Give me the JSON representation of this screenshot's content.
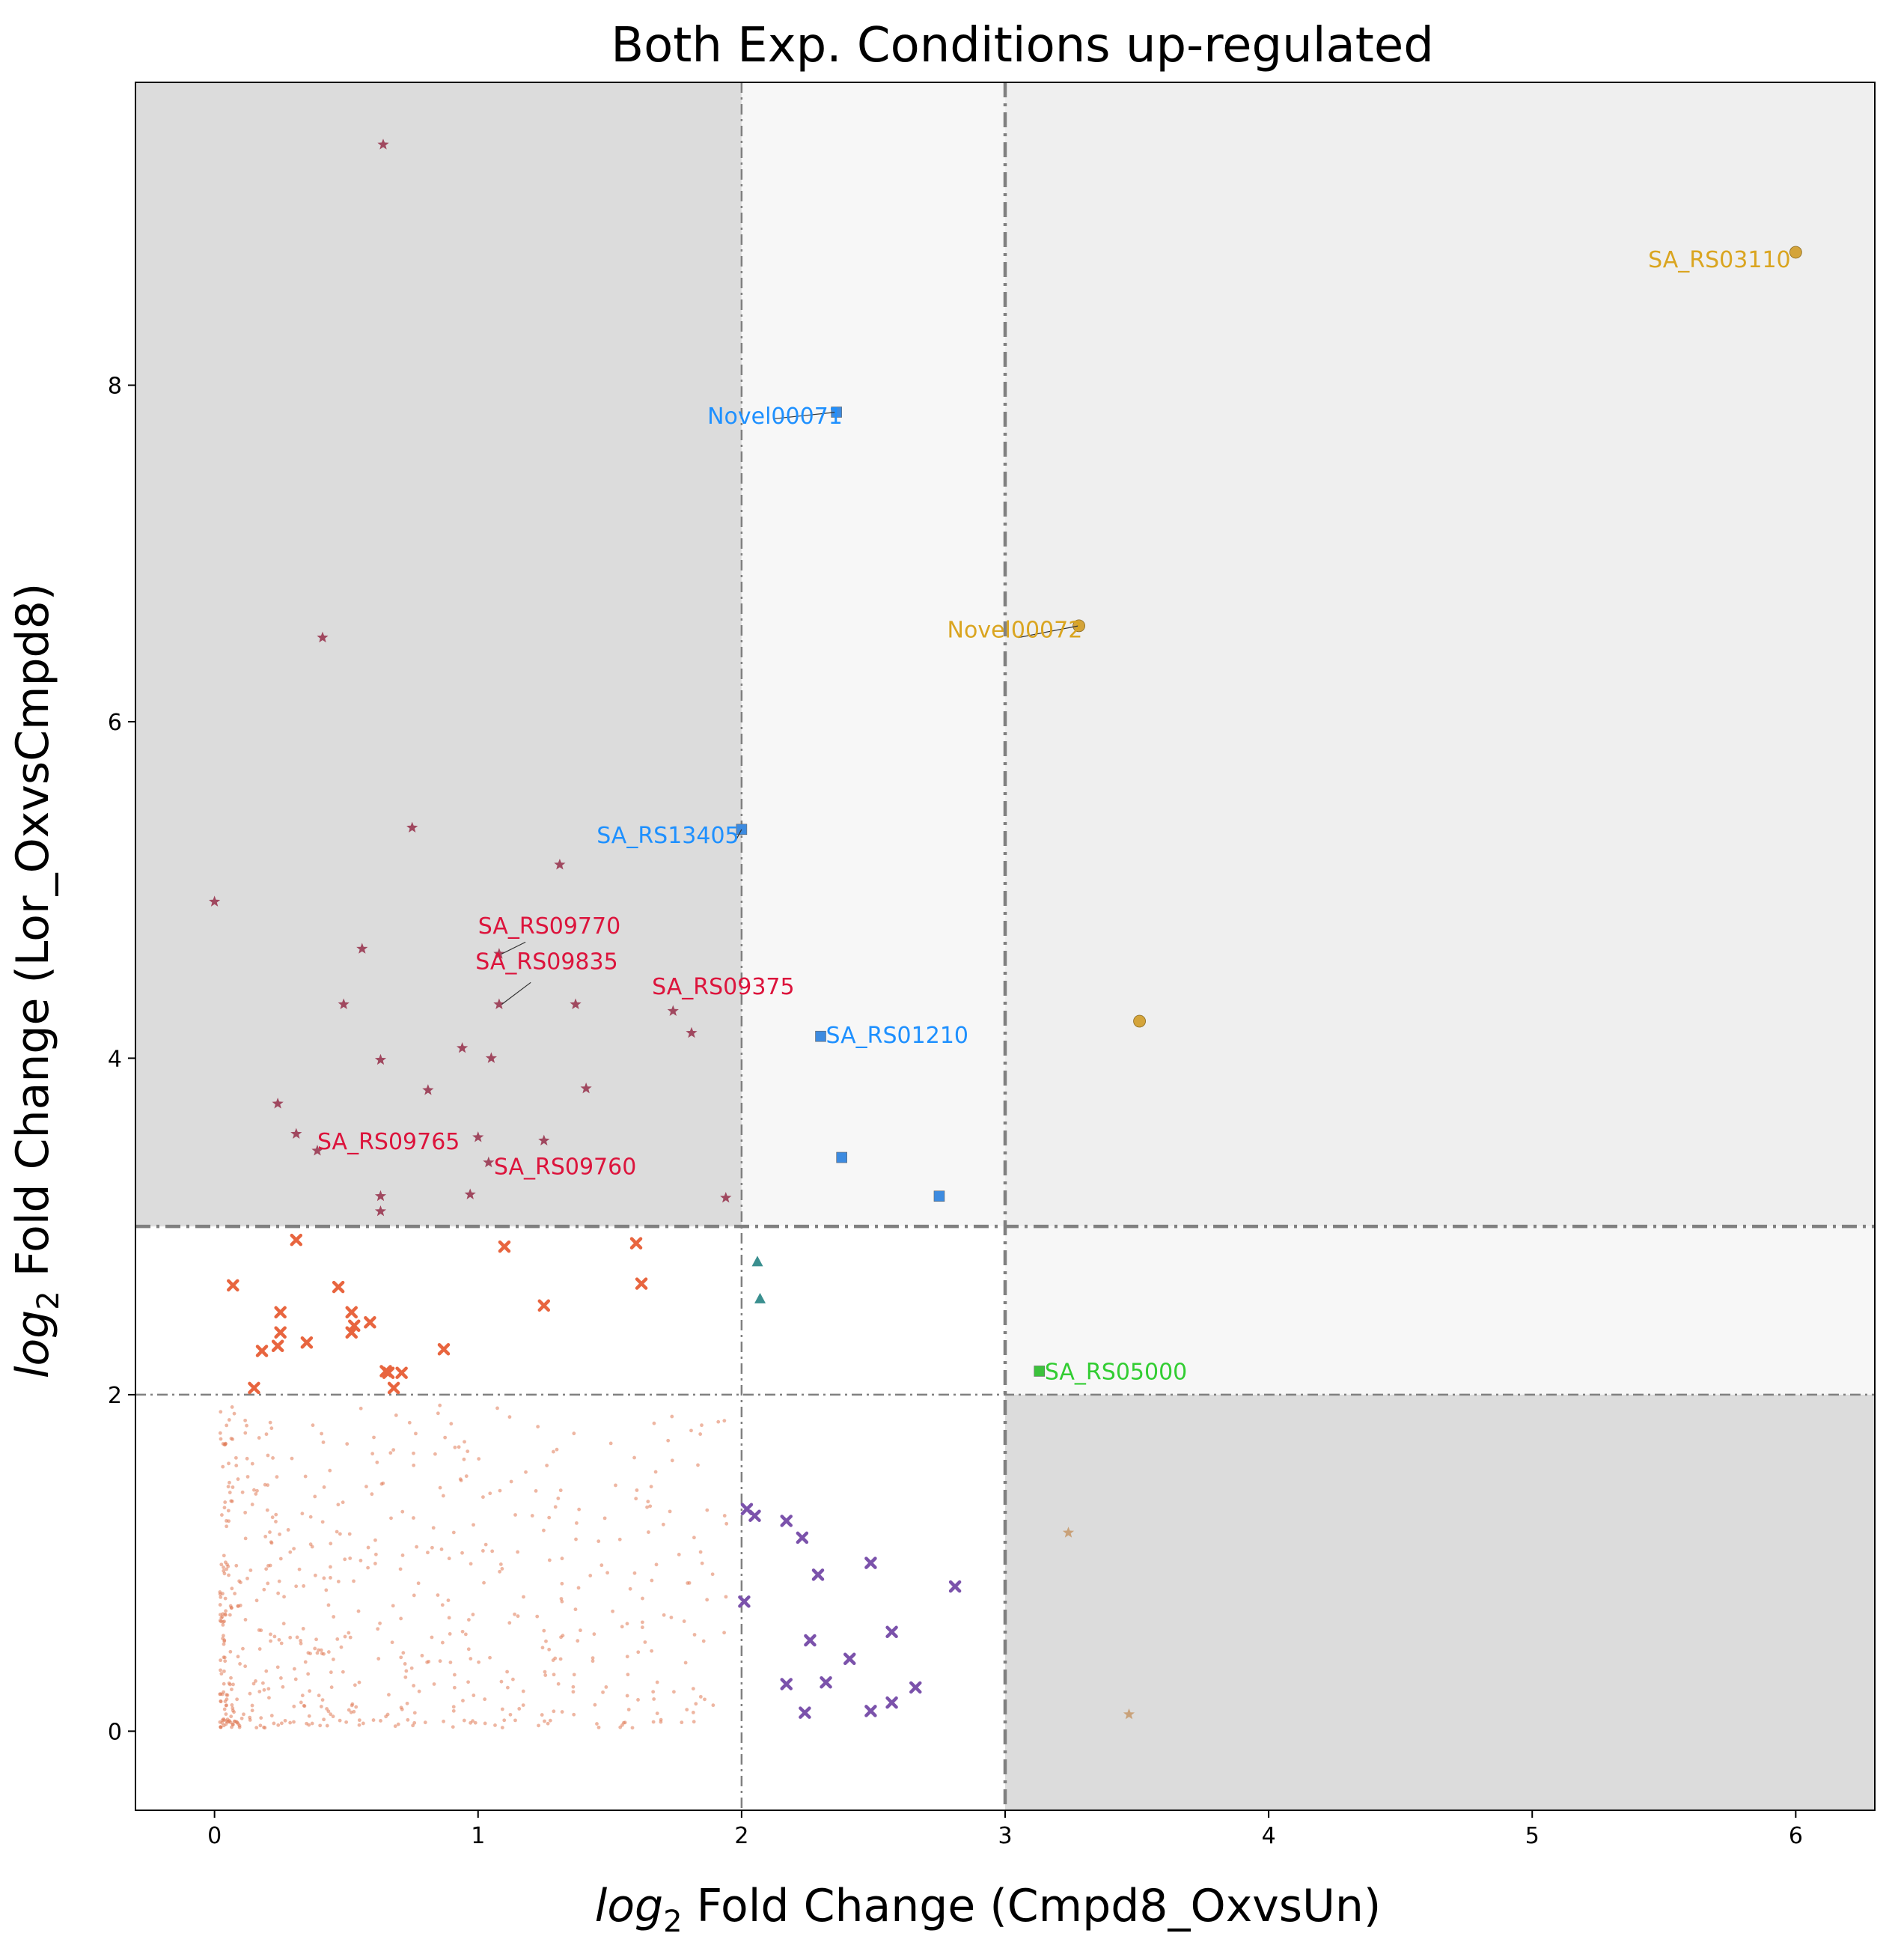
{
  "chart_data": {
    "type": "scatter",
    "title": "Both Exp. Conditions up-regulated",
    "xlabel_italic": "log",
    "xlabel_sub": "2",
    "xlabel_rest": " Fold Change (Cmpd8_OxvsUn)",
    "ylabel_italic": "log",
    "ylabel_sub": "2",
    "ylabel_rest": " Fold Change (Lor_OxvsCmpd8)",
    "xlim": [
      -0.3,
      6.3
    ],
    "ylim": [
      -0.47,
      9.8
    ],
    "xticks": [
      0,
      1,
      2,
      3,
      4,
      5,
      6
    ],
    "yticks": [
      0,
      2,
      4,
      6,
      8
    ],
    "thresholds": {
      "x": [
        2,
        3
      ],
      "y": [
        2,
        3
      ]
    },
    "colors": {
      "red_star": "#a0485f",
      "blue": "#3d8be0",
      "gold": "#d4a43a",
      "green": "#3cc23c",
      "teal": "#3a8f8f",
      "purple": "#7b52ab",
      "orange_x": "#e8653f",
      "dot": "#e07a55",
      "tan": "#c9a27a",
      "label_red": "#dc143c",
      "label_blue": "#1e90ff",
      "label_gold": "#daa520",
      "label_green": "#32cd32"
    },
    "series": [
      {
        "marker": "star",
        "color": "red_star",
        "points": [
          [
            0.64,
            9.43
          ],
          [
            0.41,
            6.5
          ],
          [
            0.75,
            5.37
          ],
          [
            0,
            4.93
          ],
          [
            1.31,
            5.15
          ],
          [
            0.56,
            4.65
          ],
          [
            1.08,
            4.62
          ],
          [
            0.49,
            4.32
          ],
          [
            1.08,
            4.32
          ],
          [
            1.37,
            4.32
          ],
          [
            1.74,
            4.28
          ],
          [
            1.81,
            4.15
          ],
          [
            0.94,
            4.06
          ],
          [
            0.63,
            3.99
          ],
          [
            1.05,
            4.0
          ],
          [
            0.81,
            3.81
          ],
          [
            1.41,
            3.82
          ],
          [
            0.24,
            3.73
          ],
          [
            0.31,
            3.55
          ],
          [
            1.0,
            3.53
          ],
          [
            1.25,
            3.51
          ],
          [
            0.39,
            3.45
          ],
          [
            1.04,
            3.38
          ],
          [
            0.63,
            3.18
          ],
          [
            0.97,
            3.19
          ],
          [
            1.94,
            3.17
          ],
          [
            0.63,
            3.09
          ]
        ]
      },
      {
        "marker": "square",
        "color": "blue",
        "points": [
          [
            2.36,
            7.84
          ],
          [
            2.0,
            5.36
          ],
          [
            2.3,
            4.13
          ],
          [
            2.38,
            3.41
          ],
          [
            2.75,
            3.18
          ]
        ]
      },
      {
        "marker": "circle",
        "color": "gold",
        "points": [
          [
            6.0,
            8.79
          ],
          [
            3.28,
            6.57
          ],
          [
            3.51,
            4.22
          ]
        ]
      },
      {
        "marker": "square",
        "color": "green",
        "points": [
          [
            3.13,
            2.14
          ]
        ]
      },
      {
        "marker": "triangle",
        "color": "teal",
        "points": [
          [
            2.06,
            2.79
          ],
          [
            2.07,
            2.57
          ]
        ]
      },
      {
        "marker": "x",
        "color": "purple",
        "points": [
          [
            2.02,
            1.32
          ],
          [
            2.05,
            1.28
          ],
          [
            2.17,
            1.25
          ],
          [
            2.23,
            1.15
          ],
          [
            2.29,
            0.93
          ],
          [
            2.49,
            1.0
          ],
          [
            2.81,
            0.86
          ],
          [
            2.01,
            0.77
          ],
          [
            2.57,
            0.59
          ],
          [
            2.26,
            0.54
          ],
          [
            2.41,
            0.43
          ],
          [
            2.17,
            0.28
          ],
          [
            2.32,
            0.29
          ],
          [
            2.66,
            0.26
          ],
          [
            2.57,
            0.17
          ],
          [
            2.24,
            0.11
          ],
          [
            2.49,
            0.12
          ]
        ]
      },
      {
        "marker": "x",
        "color": "orange_x",
        "points": [
          [
            0.31,
            2.92
          ],
          [
            1.1,
            2.88
          ],
          [
            1.6,
            2.9
          ],
          [
            0.07,
            2.65
          ],
          [
            0.47,
            2.64
          ],
          [
            1.62,
            2.66
          ],
          [
            1.25,
            2.53
          ],
          [
            0.25,
            2.49
          ],
          [
            0.52,
            2.49
          ],
          [
            0.59,
            2.43
          ],
          [
            0.53,
            2.41
          ],
          [
            0.25,
            2.37
          ],
          [
            0.52,
            2.37
          ],
          [
            0.24,
            2.29
          ],
          [
            0.35,
            2.31
          ],
          [
            0.18,
            2.26
          ],
          [
            0.87,
            2.27
          ],
          [
            0.65,
            2.14
          ],
          [
            0.66,
            2.13
          ],
          [
            0.71,
            2.13
          ],
          [
            0.15,
            2.04
          ],
          [
            0.68,
            2.04
          ]
        ]
      },
      {
        "marker": "star",
        "color": "tan",
        "points": [
          [
            3.24,
            1.18
          ],
          [
            3.47,
            0.1
          ]
        ]
      }
    ],
    "annotations": [
      {
        "text": "SA_RS03110",
        "color": "label_red_gold",
        "x": 5.44,
        "y": 8.7
      },
      {
        "text": "Novel00071",
        "color": "label_blue",
        "x": 1.87,
        "y": 7.77
      },
      {
        "text": "Novel00072",
        "color": "label_gold",
        "x": 2.78,
        "y": 6.5
      },
      {
        "text": "SA_RS13405",
        "color": "label_blue",
        "x": 1.45,
        "y": 5.28
      },
      {
        "text": "SA_RS09770",
        "color": "label_red",
        "x": 1.0,
        "y": 4.74
      },
      {
        "text": "SA_RS09835",
        "color": "label_red",
        "x": 0.99,
        "y": 4.53
      },
      {
        "text": "SA_RS09375",
        "color": "label_red",
        "x": 1.66,
        "y": 4.38
      },
      {
        "text": "SA_RS01210",
        "color": "label_blue",
        "x": 2.32,
        "y": 4.09
      },
      {
        "text": "SA_RS09765",
        "color": "label_red",
        "x": 0.39,
        "y": 3.46
      },
      {
        "text": "SA_RS09760",
        "color": "label_red",
        "x": 1.06,
        "y": 3.31
      },
      {
        "text": "SA_RS05000",
        "color": "label_green",
        "x": 3.15,
        "y": 2.09
      }
    ]
  }
}
